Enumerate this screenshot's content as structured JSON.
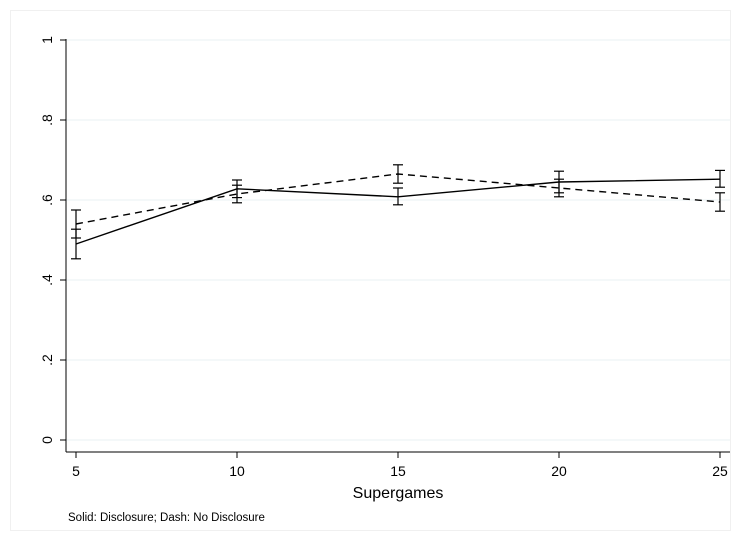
{
  "chart_data": {
    "type": "line",
    "title": "",
    "xlabel": "Supergames",
    "ylabel": "",
    "note": "Solid: Disclosure; Dash: No Disclosure",
    "x": [
      5,
      10,
      15,
      20,
      25
    ],
    "xlim": [
      5,
      25
    ],
    "ylim": [
      0,
      1
    ],
    "x_ticks": [
      5,
      10,
      15,
      20,
      25
    ],
    "x_tick_labels": [
      "5",
      "10",
      "15",
      "20",
      "25"
    ],
    "y_ticks": [
      0,
      0.2,
      0.4,
      0.6,
      0.8,
      1
    ],
    "y_tick_labels": [
      "0",
      ".2",
      ".4",
      ".6",
      ".8",
      "1"
    ],
    "grid": true,
    "series": [
      {
        "style": "solid",
        "values": [
          0.49,
          0.628,
          0.608,
          0.645,
          0.652
        ],
        "ci_low": [
          0.453,
          0.606,
          0.588,
          0.618,
          0.632
        ],
        "ci_high": [
          0.527,
          0.65,
          0.63,
          0.672,
          0.674
        ]
      },
      {
        "style": "dashed",
        "values": [
          0.54,
          0.615,
          0.665,
          0.63,
          0.595
        ],
        "ci_low": [
          0.505,
          0.593,
          0.642,
          0.608,
          0.572
        ],
        "ci_high": [
          0.575,
          0.637,
          0.688,
          0.652,
          0.618
        ]
      }
    ]
  }
}
